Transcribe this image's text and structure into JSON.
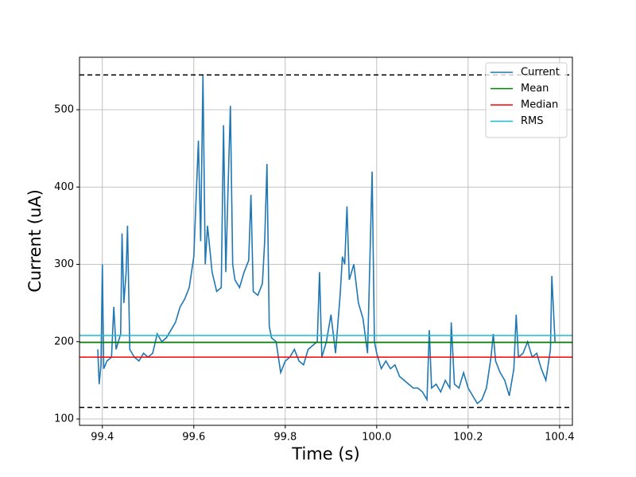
{
  "chart_data": {
    "type": "line",
    "x_label": "Time (s)",
    "y_label": "Current (uA)",
    "x": [
      99.39,
      99.393,
      99.397,
      99.4,
      99.403,
      99.41,
      99.42,
      99.425,
      99.43,
      99.44,
      99.443,
      99.447,
      99.452,
      99.455,
      99.46,
      99.47,
      99.48,
      99.49,
      99.5,
      99.51,
      99.52,
      99.53,
      99.54,
      99.55,
      99.56,
      99.57,
      99.58,
      99.59,
      99.6,
      99.61,
      99.615,
      99.62,
      99.625,
      99.63,
      99.64,
      99.65,
      99.66,
      99.665,
      99.67,
      99.675,
      99.68,
      99.685,
      99.69,
      99.7,
      99.71,
      99.72,
      99.725,
      99.73,
      99.74,
      99.75,
      99.755,
      99.76,
      99.765,
      99.77,
      99.78,
      99.79,
      99.8,
      99.81,
      99.82,
      99.83,
      99.84,
      99.85,
      99.86,
      99.87,
      99.875,
      99.88,
      99.89,
      99.9,
      99.91,
      99.92,
      99.925,
      99.93,
      99.935,
      99.94,
      99.95,
      99.96,
      99.97,
      99.98,
      99.99,
      99.995,
      100.0,
      100.01,
      100.02,
      100.03,
      100.04,
      100.05,
      100.06,
      100.07,
      100.08,
      100.09,
      100.1,
      100.11,
      100.115,
      100.12,
      100.13,
      100.14,
      100.15,
      100.16,
      100.163,
      100.17,
      100.18,
      100.19,
      100.2,
      100.21,
      100.22,
      100.23,
      100.24,
      100.25,
      100.255,
      100.26,
      100.27,
      100.28,
      100.29,
      100.3,
      100.305,
      100.31,
      100.32,
      100.33,
      100.34,
      100.35,
      100.36,
      100.37,
      100.38,
      100.383,
      100.39
    ],
    "series": [
      {
        "name": "Current",
        "color": "#1f77b4",
        "values": [
          190,
          145,
          170,
          300,
          165,
          175,
          180,
          245,
          190,
          210,
          340,
          250,
          290,
          350,
          190,
          180,
          175,
          185,
          180,
          185,
          210,
          200,
          205,
          215,
          225,
          245,
          255,
          270,
          310,
          460,
          330,
          545,
          300,
          350,
          290,
          265,
          270,
          480,
          290,
          400,
          505,
          300,
          280,
          270,
          290,
          305,
          390,
          265,
          260,
          275,
          330,
          430,
          220,
          205,
          200,
          160,
          175,
          180,
          190,
          175,
          170,
          190,
          195,
          200,
          290,
          180,
          200,
          235,
          185,
          260,
          310,
          300,
          375,
          280,
          300,
          250,
          230,
          185,
          420,
          200,
          185,
          165,
          175,
          165,
          170,
          155,
          150,
          145,
          140,
          140,
          135,
          125,
          215,
          140,
          145,
          135,
          150,
          140,
          225,
          145,
          140,
          160,
          140,
          130,
          120,
          125,
          140,
          180,
          210,
          175,
          160,
          150,
          130,
          165,
          235,
          180,
          185,
          200,
          180,
          185,
          165,
          150,
          190,
          285,
          200
        ]
      }
    ],
    "reference_lines": [
      {
        "name": "Mean",
        "color": "#008000",
        "value": 199
      },
      {
        "name": "Median",
        "color": "#ff0000",
        "value": 180
      },
      {
        "name": "RMS",
        "color": "#17becf",
        "value": 208
      }
    ],
    "bounds": {
      "color": "#000000",
      "dashed": true,
      "values": [
        545,
        115
      ]
    },
    "xlim": [
      99.35,
      100.428
    ],
    "ylim": [
      91.8,
      567.9
    ],
    "xticks": [
      99.4,
      99.6,
      99.8,
      {
        "value": 100,
        "label": "100.0"
      },
      100.2,
      100.4
    ],
    "yticks": [
      100,
      200,
      300,
      400,
      500
    ],
    "grid": true,
    "legend": "upper-right"
  }
}
